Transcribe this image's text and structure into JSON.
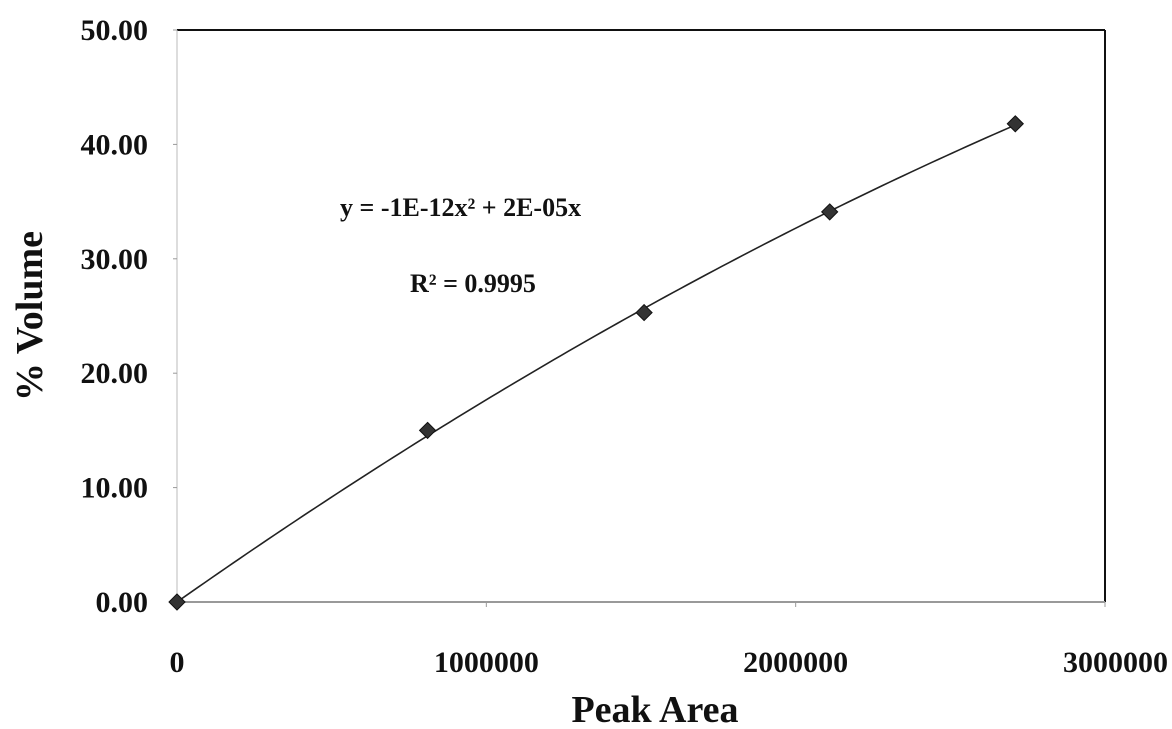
{
  "chart_data": {
    "type": "scatter",
    "title": "",
    "xlabel": "Peak Area",
    "ylabel": "% Volume",
    "xlim": [
      0,
      3000000
    ],
    "ylim": [
      0,
      50
    ],
    "x_ticks": [
      "0",
      "1000000",
      "2000000",
      "3000000"
    ],
    "y_ticks": [
      "0.00",
      "10.00",
      "20.00",
      "30.00",
      "40.00",
      "50.00"
    ],
    "grid": false,
    "legend": "none",
    "marker": "diamond",
    "series": [
      {
        "points": [
          {
            "x": 0,
            "y": 0
          },
          {
            "x": 810000,
            "y": 15.0
          },
          {
            "x": 1510000,
            "y": 25.3
          },
          {
            "x": 2110000,
            "y": 34.1
          },
          {
            "x": 2710000,
            "y": 41.8
          }
        ]
      }
    ],
    "trendline": {
      "type": "polynomial",
      "equation": "y = -1E-12x² + 2E-05x",
      "r_squared": "R² = 0.9995"
    },
    "colors": {
      "marker": "#333333",
      "line": "#222222",
      "frame": "#111111"
    }
  }
}
